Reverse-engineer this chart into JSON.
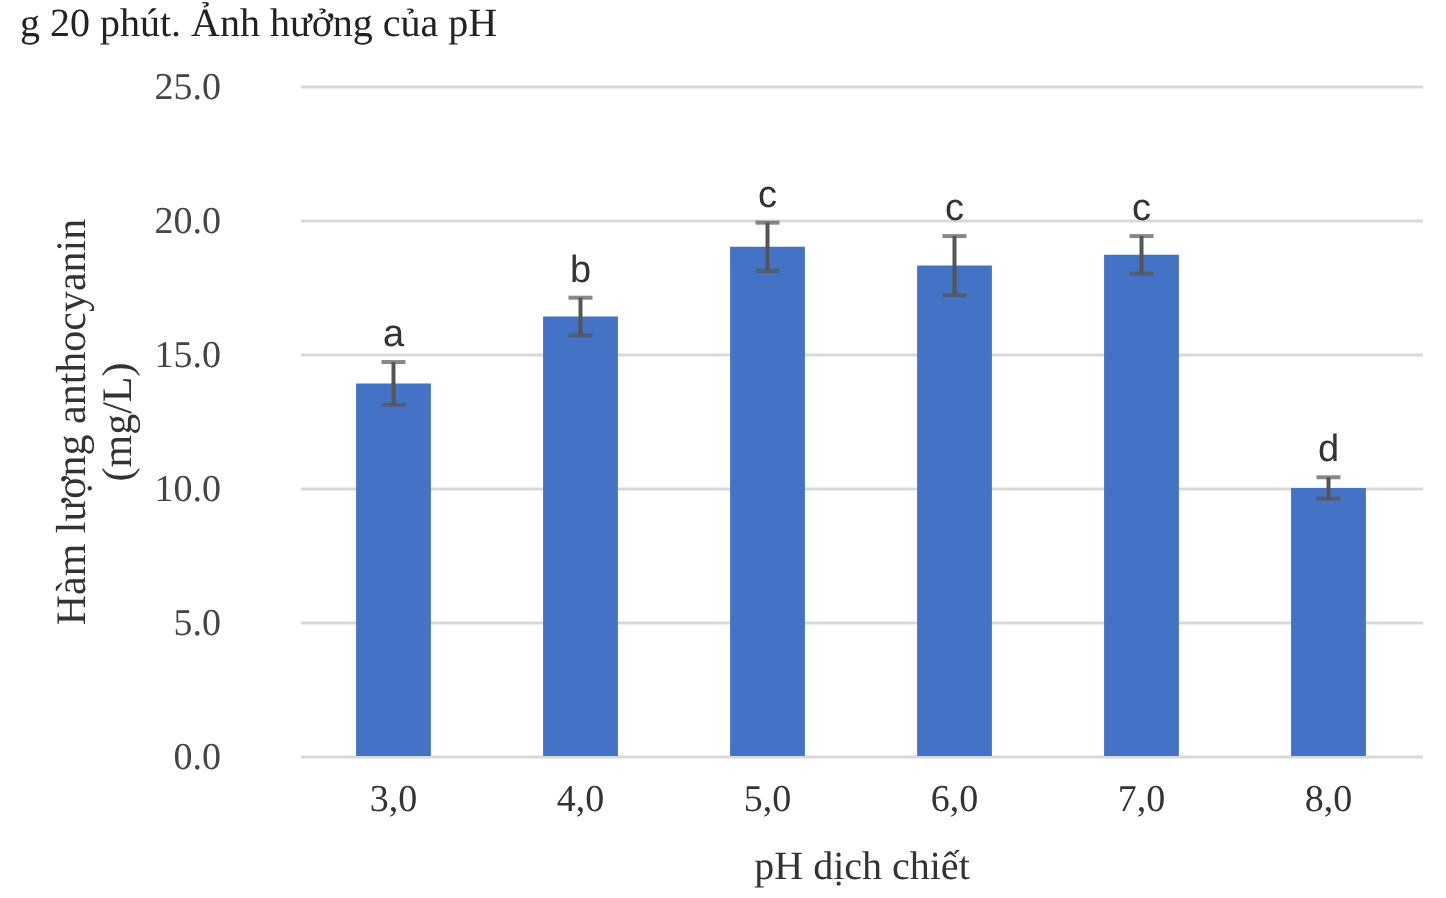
{
  "chart_data": {
    "type": "bar",
    "title": "g 20 phút. Ảnh hưởng của pH",
    "xlabel": "pH dịch chiết",
    "ylabel": "Hàm lượng anthocyanin\n(mg/L)",
    "categories": [
      "3,0",
      "4,0",
      "5,0",
      "6,0",
      "7,0",
      "8,0"
    ],
    "values": [
      13.9,
      16.4,
      19.0,
      18.3,
      18.7,
      10.0
    ],
    "errors": [
      0.8,
      0.7,
      0.9,
      1.1,
      0.7,
      0.4
    ],
    "color": "#4472c4",
    "ylim": [
      0,
      25
    ],
    "yticks": [
      {
        "value": 0,
        "label": "0.0"
      },
      {
        "value": 5,
        "label": "5.0"
      },
      {
        "value": 10,
        "label": "10.0"
      },
      {
        "value": 15,
        "label": "15.0"
      },
      {
        "value": 20,
        "label": "20.0"
      },
      {
        "value": 25,
        "label": "25.0"
      }
    ],
    "grid": "y",
    "annotations": [
      {
        "text": "a",
        "x": "3,0",
        "y": 14.7
      },
      {
        "text": "b",
        "x": "4,0",
        "y": 17.1
      },
      {
        "text": "c",
        "x": "5,0",
        "y": 19.9
      },
      {
        "text": "c",
        "x": "6,0",
        "y": 19.4
      },
      {
        "text": "c",
        "x": "7,0",
        "y": 19.4
      },
      {
        "text": "d",
        "x": "8,0",
        "y": 10.4
      }
    ]
  }
}
